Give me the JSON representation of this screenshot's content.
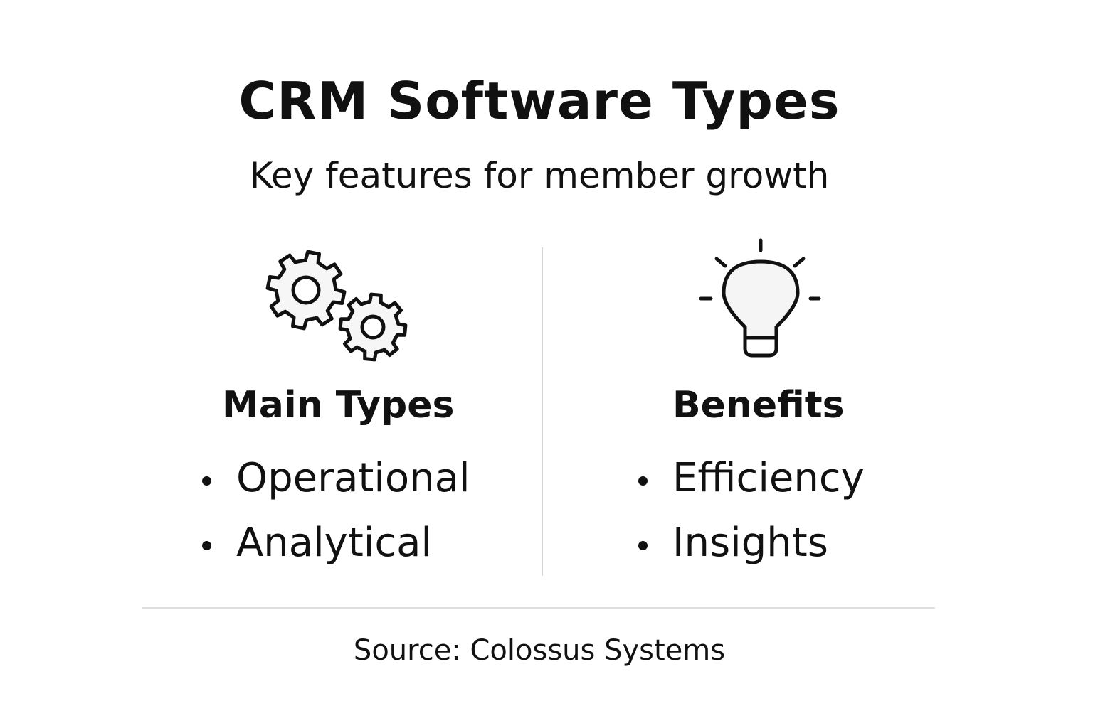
{
  "title": "CRM Software Types",
  "subtitle": "Key features for member growth",
  "columns": [
    {
      "icon": "gears-icon",
      "heading": "Main Types",
      "items": [
        "Operational",
        "Analytical"
      ]
    },
    {
      "icon": "lightbulb-icon",
      "heading": "Benefits",
      "items": [
        "Efficiency",
        "Insights"
      ]
    }
  ],
  "source": "Source: Colossus Systems"
}
